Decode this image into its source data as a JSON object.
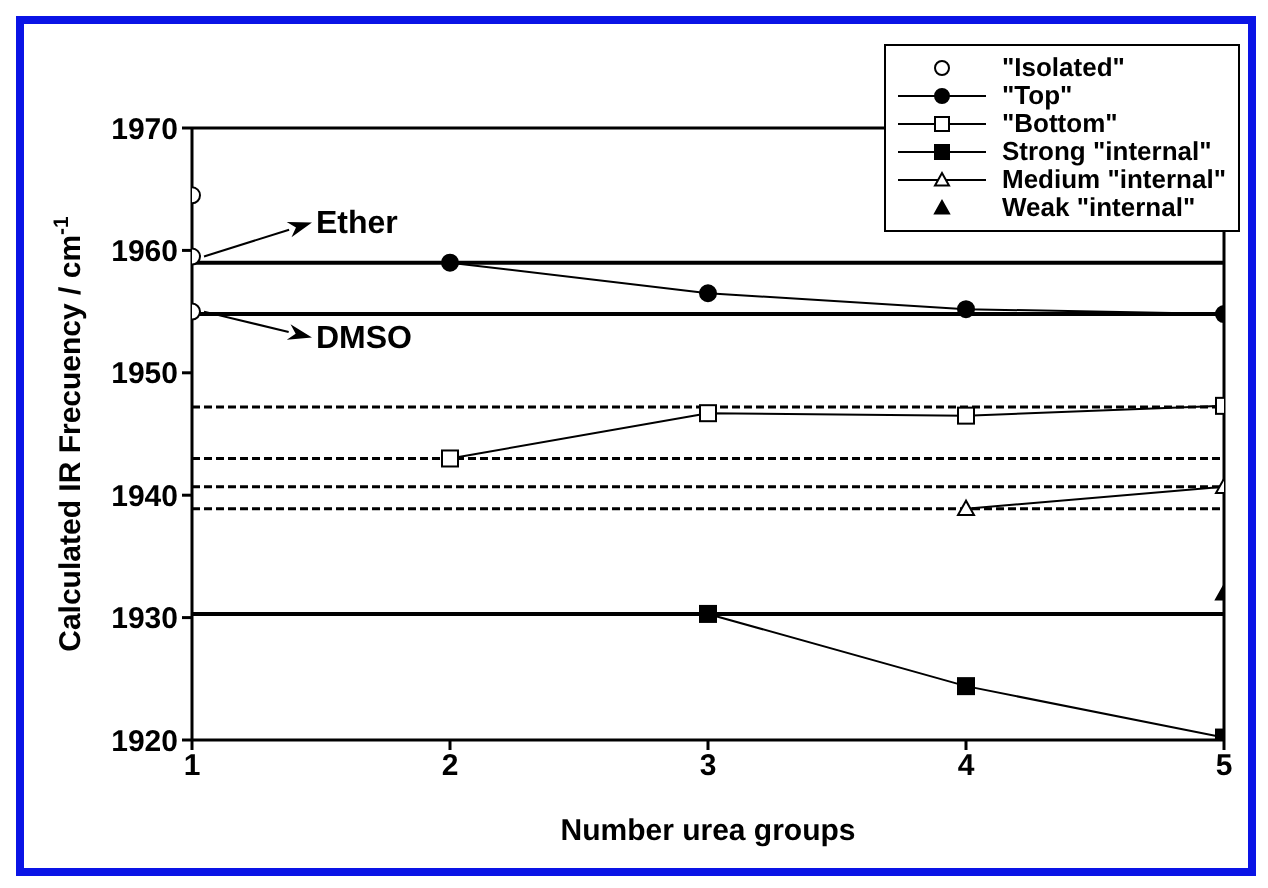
{
  "chart_data": {
    "type": "line",
    "xlabel": "Number urea groups",
    "ylabel": "Calculated IR Frecuency / cm$^{-1}$",
    "xlim": [
      1,
      5
    ],
    "xticks": [
      1,
      2,
      3,
      4,
      5
    ],
    "ylim": [
      1920,
      1970
    ],
    "yticks": [
      1920,
      1930,
      1940,
      1950,
      1960,
      1970
    ],
    "grid": false,
    "legend": "top right",
    "line_style": "solid",
    "series": [
      {
        "name": "\"Isolated\"",
        "type": "scatter",
        "marker": "circle-open",
        "color": "#000000",
        "x": [
          1,
          1,
          1
        ],
        "values": [
          1964.5,
          1959.5,
          1955
        ]
      },
      {
        "name": "\"Top\"",
        "marker": "circle",
        "color": "#000000",
        "x": [
          2,
          3,
          4,
          5
        ],
        "values": [
          1959,
          1956.5,
          1955.2,
          1954.8
        ]
      },
      {
        "name": "\"Bottom\"",
        "marker": "square-open",
        "color": "#000000",
        "x": [
          2,
          3,
          4,
          5
        ],
        "values": [
          1943,
          1946.7,
          1946.5,
          1947.3
        ]
      },
      {
        "name": "Strong \"internal\"",
        "marker": "square",
        "color": "#000000",
        "x": [
          3,
          4,
          5
        ],
        "values": [
          1930.3,
          1924.4,
          1920.2
        ]
      },
      {
        "name": "Medium \"internal\"",
        "marker": "triangle-open",
        "color": "#000000",
        "x": [
          4,
          5
        ],
        "values": [
          1938.9,
          1940.7
        ]
      },
      {
        "name": "Weak \"internal\"",
        "type": "scatter",
        "marker": "triangle",
        "color": "#000000",
        "x": [
          5
        ],
        "values": [
          1932
        ]
      }
    ],
    "ref_lines": [
      {
        "axis": "y",
        "value": 1959,
        "color": "#000000",
        "line_style": "solid"
      },
      {
        "axis": "y",
        "value": 1954.8,
        "color": "#000000",
        "line_style": "solid"
      },
      {
        "axis": "y",
        "value": 1930.3,
        "color": "#000000",
        "line_style": "solid"
      },
      {
        "axis": "y",
        "value": 1947.2,
        "color": "#000000",
        "line_style": "dashed"
      },
      {
        "axis": "y",
        "value": 1943,
        "color": "#000000",
        "line_style": "dashed"
      },
      {
        "axis": "y",
        "value": 1940.7,
        "color": "#000000",
        "line_style": "dashed"
      },
      {
        "axis": "y",
        "value": 1938.9,
        "color": "#000000",
        "line_style": "dashed"
      }
    ],
    "annotations": [
      {
        "text": "Ether",
        "x": 1,
        "y": 1959.5
      },
      {
        "text": "DMSO",
        "x": 1,
        "y": 1955
      }
    ]
  }
}
